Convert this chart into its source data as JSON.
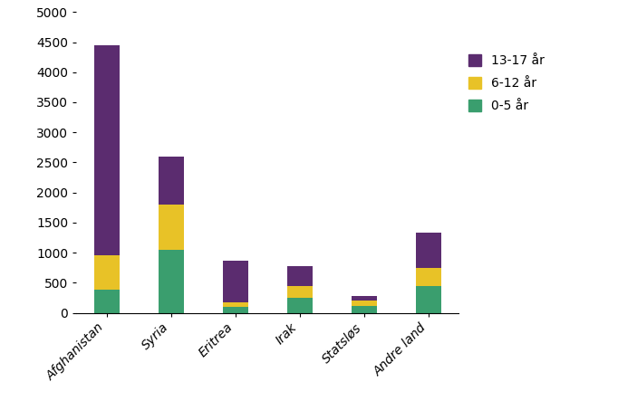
{
  "categories": [
    "Afghanistan",
    "Syria",
    "Eritrea",
    "Irak",
    "Statsløs",
    "Andre land"
  ],
  "age_groups": [
    "0-5 år",
    "6-12 år",
    "13-17 år"
  ],
  "values": {
    "0-5 år": [
      380,
      1050,
      100,
      250,
      120,
      450
    ],
    "6-12 år": [
      570,
      750,
      80,
      200,
      80,
      300
    ],
    "13-17 år": [
      3500,
      800,
      680,
      330,
      80,
      580
    ]
  },
  "colors": {
    "0-5 år": "#3a9e6e",
    "6-12 år": "#e8c227",
    "13-17 år": "#5b2c6f"
  },
  "ylim": [
    0,
    5000
  ],
  "yticks": [
    0,
    500,
    1000,
    1500,
    2000,
    2500,
    3000,
    3500,
    4000,
    4500,
    5000
  ],
  "background_color": "#ffffff",
  "legend_order": [
    "13-17 år",
    "6-12 år",
    "0-5 år"
  ],
  "bar_width": 0.4,
  "figsize": [
    7.03,
    4.43
  ],
  "dpi": 100
}
